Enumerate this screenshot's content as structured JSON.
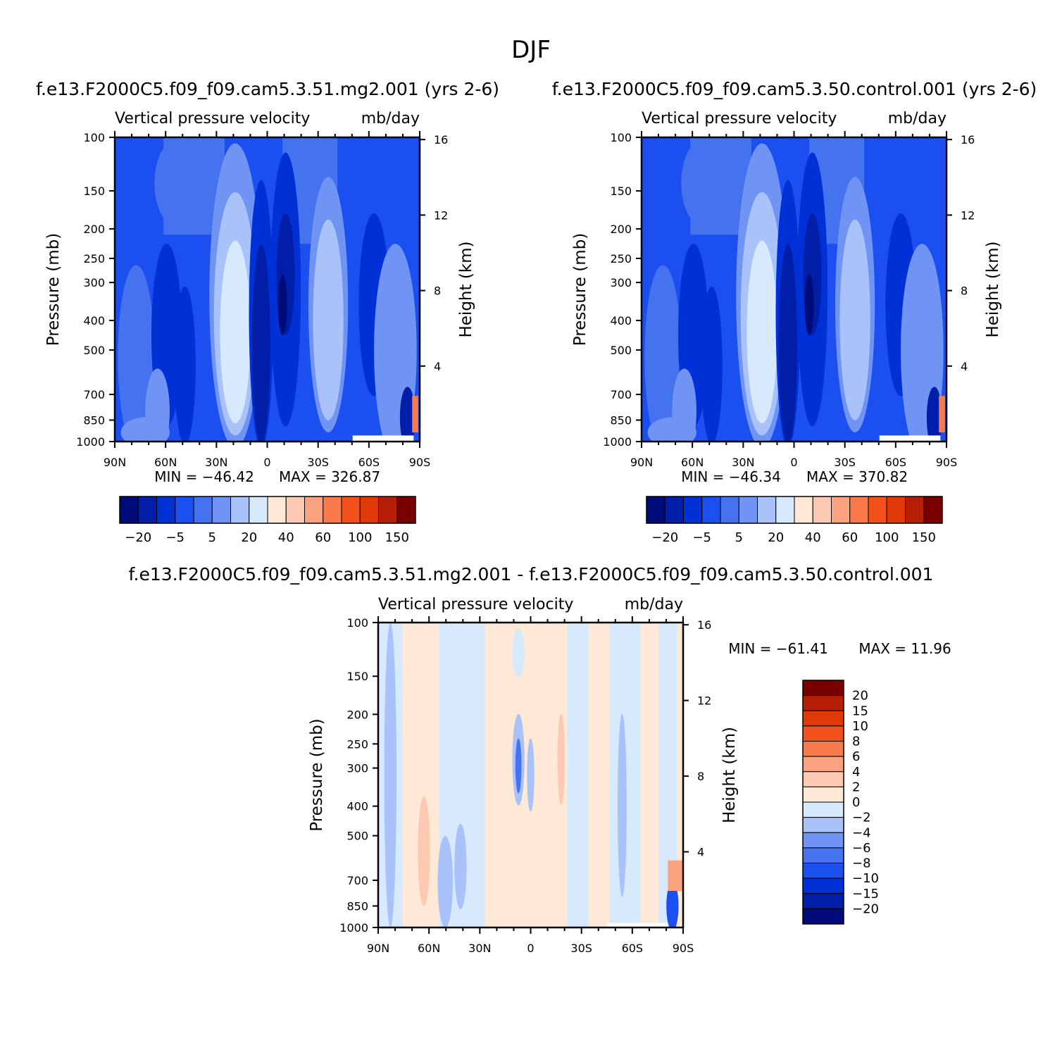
{
  "figure_title": "DJF",
  "colors": {
    "main_scale": [
      "#000b7a",
      "#001ea7",
      "#0031d6",
      "#1c4ff0",
      "#4573ef",
      "#7094f3",
      "#a9c2fa",
      "#d6e9fd",
      "#fee9d6",
      "#fccab2",
      "#fba27f",
      "#f97a4c",
      "#f3511c",
      "#e03a08",
      "#b61f05",
      "#7a0000"
    ],
    "diff_scale": [
      "#000b7a",
      "#001ea7",
      "#0031d6",
      "#1c4ff0",
      "#4573ef",
      "#7094f3",
      "#a9c2fa",
      "#d6e9fd",
      "#fee9d6",
      "#fccab2",
      "#fba27f",
      "#f97a4c",
      "#f3511c",
      "#e03a08",
      "#b61f05",
      "#7a0000"
    ]
  },
  "panels": [
    {
      "title": "f.e13.F2000C5.f09_f09.cam5.3.51.mg2.001 (yrs 2-6)",
      "field_name": "Vertical pressure velocity",
      "units": "mb/day",
      "min_text": "MIN = -46.42",
      "max_text": "MAX = 326.87"
    },
    {
      "title": "f.e13.F2000C5.f09_f09.cam5.3.50.control.001 (yrs 2-6)",
      "field_name": "Vertical pressure velocity",
      "units": "mb/day",
      "min_text": "MIN = -46.34",
      "max_text": "MAX = 370.82"
    },
    {
      "title": "f.e13.F2000C5.f09_f09.cam5.3.51.mg2.001 - f.e13.F2000C5.f09_f09.cam5.3.50.control.001",
      "field_name": "Vertical pressure velocity",
      "units": "mb/day",
      "min_text": "MIN = -61.41",
      "max_text": "MAX = 11.96"
    }
  ],
  "axes": {
    "y_title": "Pressure (mb)",
    "y2_title": "Height (km)",
    "pressure_ticks": [
      "100",
      "150",
      "200",
      "250",
      "300",
      "400",
      "500",
      "700",
      "850",
      "1000"
    ],
    "height_ticks": [
      "16",
      "12",
      "8",
      "4"
    ],
    "lat_ticks": [
      "90N",
      "60N",
      "30N",
      "0",
      "30S",
      "60S",
      "90S"
    ]
  },
  "colorbars": {
    "main_labels": [
      "-20",
      "-5",
      "5",
      "20",
      "40",
      "60",
      "100",
      "150"
    ],
    "diff_labels": [
      "20",
      "15",
      "10",
      "8",
      "6",
      "4",
      "2",
      "0",
      "-2",
      "-4",
      "-6",
      "-8",
      "-10",
      "-15",
      "-20"
    ]
  },
  "chart_data": [
    {
      "type": "heatmap",
      "title": "f.e13.F2000C5.f09_f09.cam5.3.51.mg2.001 (yrs 2-6)",
      "subtitle": "Vertical pressure velocity mb/day",
      "xlabel": "",
      "ylabel": "Pressure (mb)",
      "y2label": "Height (km)",
      "x_ticks": [
        "90N",
        "60N",
        "30N",
        "0",
        "30S",
        "60S",
        "90S"
      ],
      "y_ticks": [
        100,
        150,
        200,
        250,
        300,
        400,
        500,
        700,
        850,
        1000
      ],
      "y2_ticks": [
        16,
        12,
        8,
        4
      ],
      "ylim": [
        1000,
        100
      ],
      "yscale": "log",
      "levels": [
        -20,
        -5,
        5,
        20,
        40,
        60,
        100,
        150
      ],
      "min": -46.42,
      "max": 326.87,
      "grid": false
    },
    {
      "type": "heatmap",
      "title": "f.e13.F2000C5.f09_f09.cam5.3.50.control.001 (yrs 2-6)",
      "subtitle": "Vertical pressure velocity mb/day",
      "xlabel": "",
      "ylabel": "Pressure (mb)",
      "y2label": "Height (km)",
      "x_ticks": [
        "90N",
        "60N",
        "30N",
        "0",
        "30S",
        "60S",
        "90S"
      ],
      "y_ticks": [
        100,
        150,
        200,
        250,
        300,
        400,
        500,
        700,
        850,
        1000
      ],
      "y2_ticks": [
        16,
        12,
        8,
        4
      ],
      "ylim": [
        1000,
        100
      ],
      "yscale": "log",
      "levels": [
        -20,
        -5,
        5,
        20,
        40,
        60,
        100,
        150
      ],
      "min": -46.34,
      "max": 370.82,
      "grid": false
    },
    {
      "type": "heatmap",
      "title": "f.e13.F2000C5.f09_f09.cam5.3.51.mg2.001 - f.e13.F2000C5.f09_f09.cam5.3.50.control.001",
      "subtitle": "Vertical pressure velocity mb/day",
      "xlabel": "",
      "ylabel": "Pressure (mb)",
      "y2label": "Height (km)",
      "x_ticks": [
        "90N",
        "60N",
        "30N",
        "0",
        "30S",
        "60S",
        "90S"
      ],
      "y_ticks": [
        100,
        150,
        200,
        250,
        300,
        400,
        500,
        700,
        850,
        1000
      ],
      "y2_ticks": [
        16,
        12,
        8,
        4
      ],
      "ylim": [
        1000,
        100
      ],
      "yscale": "log",
      "levels": [
        -20,
        -15,
        -10,
        -8,
        -6,
        -4,
        -2,
        0,
        2,
        4,
        6,
        8,
        10,
        15,
        20
      ],
      "min": -61.41,
      "max": 11.96,
      "grid": false
    }
  ]
}
